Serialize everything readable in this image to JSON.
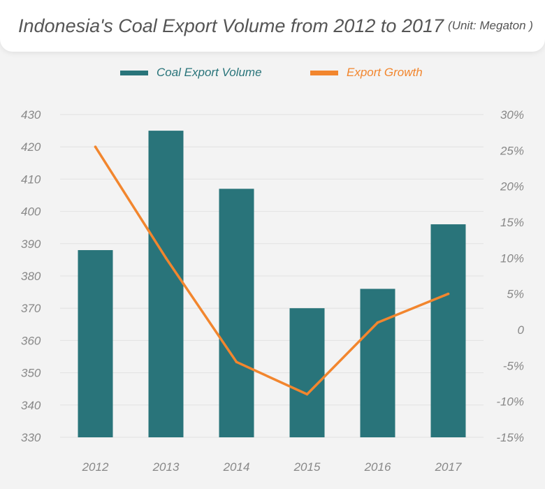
{
  "header": {
    "title": "Indonesia's Coal Export Volume from 2012 to 2017",
    "unit": "(Unit: Megaton )"
  },
  "colors": {
    "bar": "#29747a",
    "line": "#f2862e",
    "grid": "#e2e2e2",
    "axis_text": "#888888"
  },
  "chart_data": {
    "type": "bar",
    "title": "Indonesia's Coal Export Volume from 2012 to 2017",
    "categories": [
      "2012",
      "2013",
      "2014",
      "2015",
      "2016",
      "2017"
    ],
    "series": [
      {
        "name": "Coal Export Volume",
        "type": "bar",
        "axis": "left",
        "values": [
          388,
          425,
          407,
          370,
          376,
          396
        ]
      },
      {
        "name": "Export Growth",
        "type": "line",
        "axis": "right",
        "values": [
          25.5,
          10,
          -4.5,
          -9,
          1,
          5
        ]
      }
    ],
    "y_left": {
      "ylim": [
        330,
        430
      ],
      "ticks": [
        330,
        340,
        350,
        360,
        370,
        380,
        390,
        400,
        410,
        420,
        430
      ],
      "tick_labels": [
        "330",
        "340",
        "350",
        "360",
        "370",
        "380",
        "390",
        "400",
        "410",
        "420",
        "430"
      ]
    },
    "y_right": {
      "ylim": [
        -15,
        30
      ],
      "ticks": [
        -15,
        -10,
        -5,
        0,
        5,
        10,
        15,
        20,
        25,
        30
      ],
      "tick_labels": [
        "-15%",
        "-10%",
        "-5%",
        "0",
        "5%",
        "10%",
        "15%",
        "20%",
        "25%",
        "30%"
      ]
    },
    "grid": true,
    "legend_position": "top-center"
  }
}
